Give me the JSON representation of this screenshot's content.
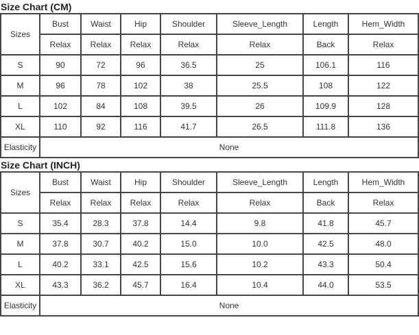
{
  "tables": [
    {
      "title": "Size Chart (CM)",
      "sizes_label": "Sizes",
      "headers": [
        "Bust",
        "Waist",
        "Hip",
        "Shoulder",
        "Sleeve_Length",
        "Length",
        "Hem_Width"
      ],
      "subheaders": [
        "Relax",
        "Relax",
        "Relax",
        "Relax",
        "Relax",
        "Back",
        "Relax"
      ],
      "rows": [
        {
          "size": "S",
          "values": [
            "90",
            "72",
            "96",
            "36.5",
            "25",
            "106.1",
            "116"
          ]
        },
        {
          "size": "M",
          "values": [
            "96",
            "78",
            "102",
            "38",
            "25.5",
            "108",
            "122"
          ]
        },
        {
          "size": "L",
          "values": [
            "102",
            "84",
            "108",
            "39.5",
            "26",
            "109.9",
            "128"
          ]
        },
        {
          "size": "XL",
          "values": [
            "110",
            "92",
            "116",
            "41.7",
            "26.5",
            "111.8",
            "136"
          ]
        }
      ],
      "elasticity_label": "Elasticity",
      "elasticity_value": "None"
    },
    {
      "title": "Size Chart (INCH)",
      "sizes_label": "Sizes",
      "headers": [
        "Bust",
        "Waist",
        "Hip",
        "Shoulder",
        "Sleeve_Length",
        "Length",
        "Hem_Width"
      ],
      "subheaders": [
        "Relax",
        "Relax",
        "Relax",
        "Relax",
        "Relax",
        "Back",
        "Relax"
      ],
      "rows": [
        {
          "size": "S",
          "values": [
            "35.4",
            "28.3",
            "37.8",
            "14.4",
            "9.8",
            "41.8",
            "45.7"
          ]
        },
        {
          "size": "M",
          "values": [
            "37.8",
            "30.7",
            "40.2",
            "15.0",
            "10.0",
            "42.5",
            "48.0"
          ]
        },
        {
          "size": "L",
          "values": [
            "40.2",
            "33.1",
            "42.5",
            "15.6",
            "10.2",
            "43.3",
            "50.4"
          ]
        },
        {
          "size": "XL",
          "values": [
            "43.3",
            "36.2",
            "45.7",
            "16.4",
            "10.4",
            "44.0",
            "53.5"
          ]
        }
      ],
      "elasticity_label": "Elasticity",
      "elasticity_value": "None"
    }
  ]
}
